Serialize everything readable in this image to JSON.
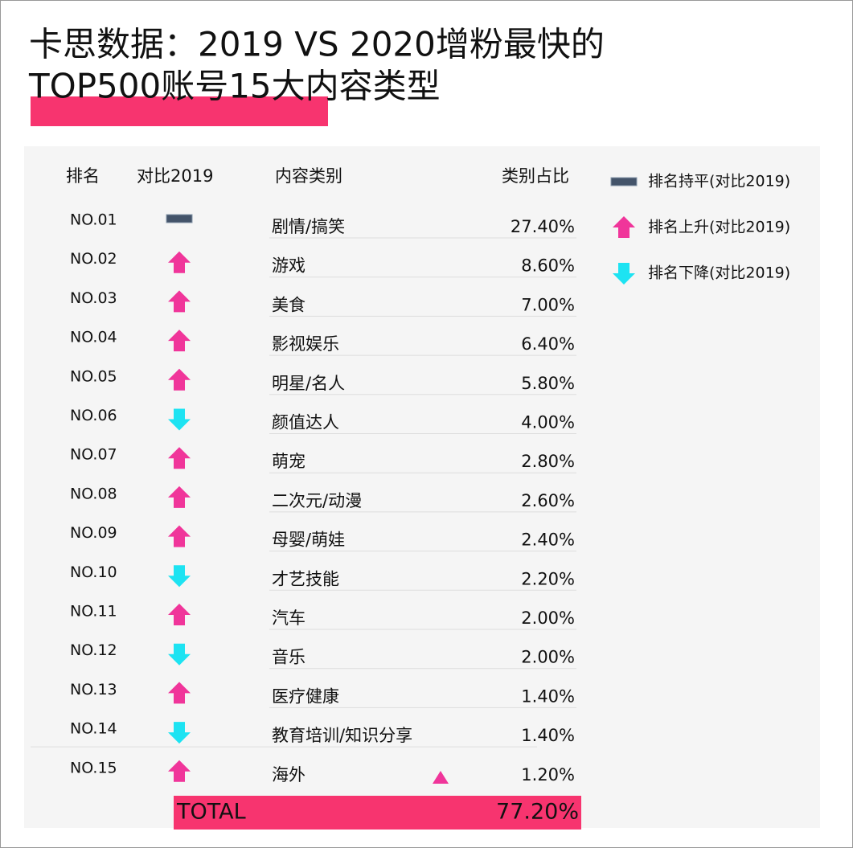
{
  "header": {
    "title_lines": [
      "卡思数据：2019 VS 2020增粉最快的",
      "TOP500账号15大内容类型"
    ]
  },
  "table": {
    "columns": [
      "排名",
      "对比2019",
      "内容类别",
      "类别占比"
    ],
    "rows": [
      {
        "rank": "NO.01",
        "trend": "flat",
        "category": "剧情/搞笑",
        "share": "27.40%"
      },
      {
        "rank": "NO.02",
        "trend": "up",
        "category": "游戏",
        "share": "8.60%"
      },
      {
        "rank": "NO.03",
        "trend": "up",
        "category": "美食",
        "share": "7.00%"
      },
      {
        "rank": "NO.04",
        "trend": "up",
        "category": "影视娱乐",
        "share": "6.40%"
      },
      {
        "rank": "NO.05",
        "trend": "up",
        "category": "明星/名人",
        "share": "5.80%"
      },
      {
        "rank": "NO.06",
        "trend": "down",
        "category": "颜值达人",
        "share": "4.00%"
      },
      {
        "rank": "NO.07",
        "trend": "up",
        "category": "萌宠",
        "share": "2.80%"
      },
      {
        "rank": "NO.08",
        "trend": "up",
        "category": "二次元/动漫",
        "share": "2.60%"
      },
      {
        "rank": "NO.09",
        "trend": "up",
        "category": "母婴/萌娃",
        "share": "2.40%"
      },
      {
        "rank": "NO.10",
        "trend": "down",
        "category": "才艺技能",
        "share": "2.20%"
      },
      {
        "rank": "NO.11",
        "trend": "up",
        "category": "汽车",
        "share": "2.00%"
      },
      {
        "rank": "NO.12",
        "trend": "down",
        "category": "音乐",
        "share": "2.00%"
      },
      {
        "rank": "NO.13",
        "trend": "up",
        "category": "医疗健康",
        "share": "1.40%"
      },
      {
        "rank": "NO.14",
        "trend": "down",
        "category": "教育培训/知识分享",
        "share": "1.40%"
      },
      {
        "rank": "NO.15",
        "trend": "up",
        "category": "海外",
        "share": "1.20%"
      }
    ],
    "total": {
      "label": "TOTAL",
      "share": "77.20%"
    }
  },
  "legend": [
    {
      "trend": "flat",
      "label": "排名持平(对比2019)"
    },
    {
      "trend": "up",
      "label": "排名上升(对比2019)"
    },
    {
      "trend": "down",
      "label": "排名下降(对比2019)"
    }
  ]
}
